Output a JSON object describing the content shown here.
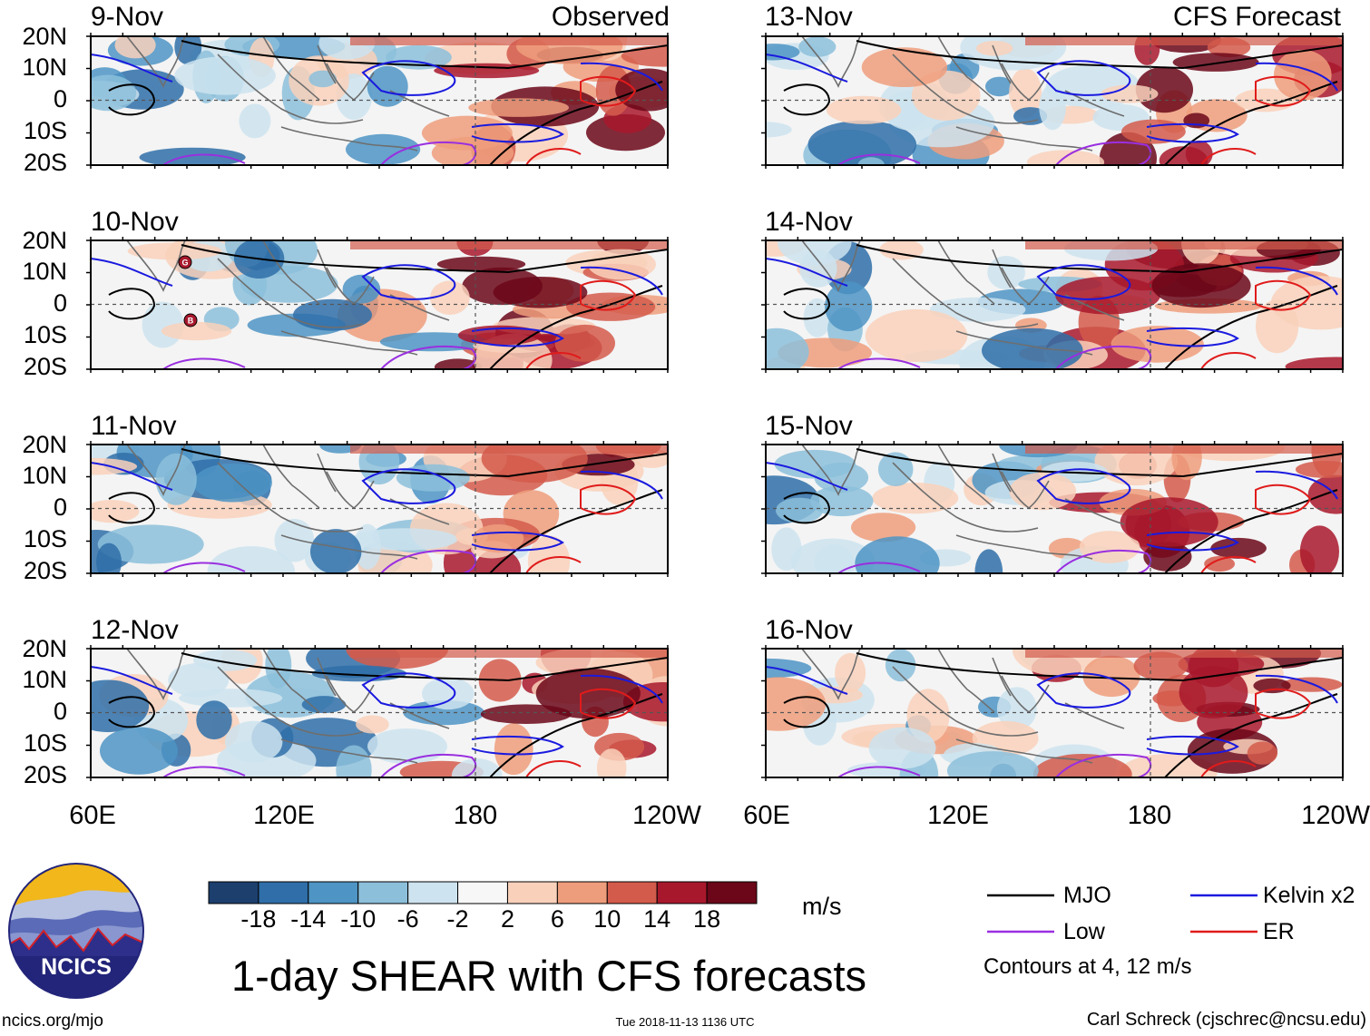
{
  "panels": {
    "observed": [
      {
        "date": "9-Nov",
        "tag": "Observed"
      },
      {
        "date": "10-Nov"
      },
      {
        "date": "11-Nov"
      },
      {
        "date": "12-Nov"
      }
    ],
    "forecast": [
      {
        "date": "13-Nov",
        "tag": "CFS Forecast"
      },
      {
        "date": "14-Nov"
      },
      {
        "date": "15-Nov"
      },
      {
        "date": "16-Nov"
      }
    ]
  },
  "axes": {
    "lat_labels": [
      "20N",
      "10N",
      "0",
      "10S",
      "20S"
    ],
    "lon_labels": [
      "60E",
      "120E",
      "180",
      "120W"
    ]
  },
  "cyclone_markers": [
    {
      "panel": "10-Nov",
      "letter": "G"
    },
    {
      "panel": "10-Nov",
      "letter": "B"
    }
  ],
  "colorbar": {
    "units": "m/s",
    "ticks": [
      "-18",
      "-14",
      "-10",
      "-6",
      "-2",
      "2",
      "6",
      "10",
      "14",
      "18"
    ],
    "colors": [
      "#1c3f6e",
      "#2f6ea8",
      "#4e94c4",
      "#8cbfda",
      "#cde3ef",
      "#f7f7f7",
      "#f9d1bb",
      "#ee9d7c",
      "#d35b4b",
      "#a8182c",
      "#6b0719"
    ]
  },
  "legend": {
    "items": [
      {
        "label": "MJO",
        "color": "#000000"
      },
      {
        "label": "Kelvin x2",
        "color": "#1a1adf"
      },
      {
        "label": "Low",
        "color": "#9a2fe0"
      },
      {
        "label": "ER",
        "color": "#e01b1b"
      }
    ],
    "note": "Contours at 4, 12 m/s"
  },
  "title": "1-day SHEAR with CFS forecasts",
  "logo": {
    "text": "NCICS"
  },
  "footer": {
    "url": "ncics.org/mjo",
    "timestamp": "Tue 2018-11-13 1136 UTC",
    "credit": "Carl Schreck (cjschrec@ncsu.edu)"
  }
}
